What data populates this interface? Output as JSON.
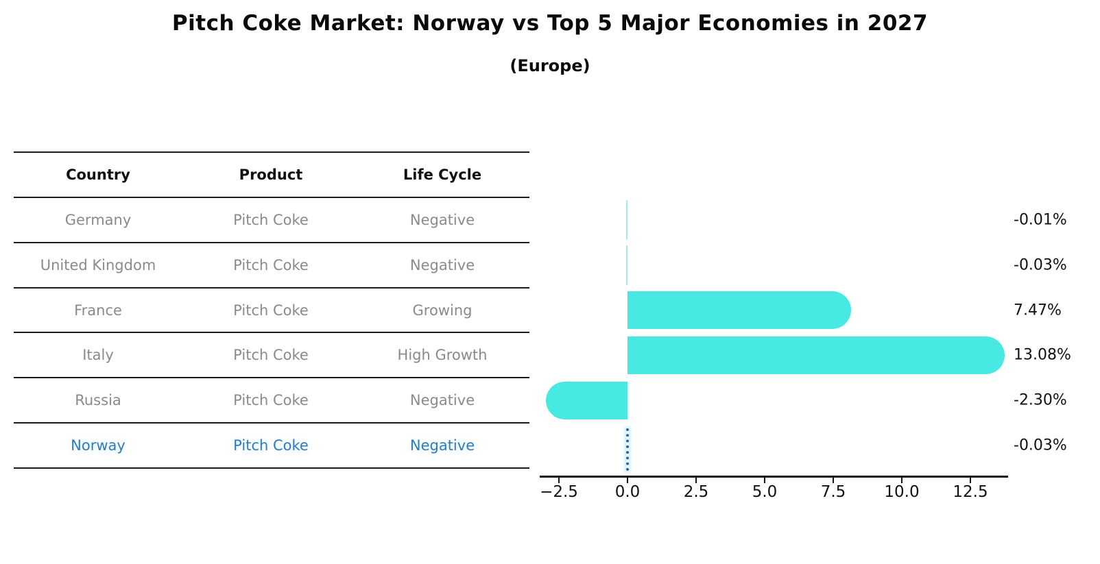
{
  "title": "Pitch Coke Market: Norway vs Top 5 Major Economies in 2027",
  "subtitle": "(Europe)",
  "table": {
    "headers": [
      "Country",
      "Product",
      "Life Cycle"
    ],
    "rows": [
      {
        "country": "Germany",
        "product": "Pitch Coke",
        "life_cycle": "Negative",
        "highlight": false
      },
      {
        "country": "United Kingdom",
        "product": "Pitch Coke",
        "life_cycle": "Negative",
        "highlight": false
      },
      {
        "country": "France",
        "product": "Pitch Coke",
        "life_cycle": "Growing",
        "highlight": false
      },
      {
        "country": "Italy",
        "product": "Pitch Coke",
        "life_cycle": "High Growth",
        "highlight": false
      },
      {
        "country": "Russia",
        "product": "Pitch Coke",
        "life_cycle": "Negative",
        "highlight": false
      },
      {
        "country": "Norway",
        "product": "Pitch Coke",
        "life_cycle": "Negative",
        "highlight": true
      }
    ]
  },
  "chart_data": {
    "type": "bar",
    "orientation": "horizontal",
    "title": "Pitch Coke Market: Norway vs Top 5 Major Economies in 2027",
    "subtitle": "(Europe)",
    "categories": [
      "Germany",
      "United Kingdom",
      "France",
      "Italy",
      "Russia",
      "Norway"
    ],
    "values": [
      -0.01,
      -0.03,
      7.47,
      13.08,
      -2.3,
      -0.03
    ],
    "value_labels": [
      "-0.01%",
      "-0.03%",
      "7.47%",
      "13.08%",
      "-2.30%",
      "-0.03%"
    ],
    "highlight_index": 5,
    "highlight_style": "blue-dotted-line",
    "x_ticks": [
      {
        "value": -2.5,
        "label": "−2.5"
      },
      {
        "value": 0.0,
        "label": "0.0"
      },
      {
        "value": 2.5,
        "label": "2.5"
      },
      {
        "value": 5.0,
        "label": "5.0"
      },
      {
        "value": 7.5,
        "label": "7.5"
      },
      {
        "value": 10.0,
        "label": "10.0"
      },
      {
        "value": 12.5,
        "label": "12.5"
      }
    ],
    "xlim": [
      -3.07,
      13.85
    ],
    "grid": false,
    "legend": "none",
    "bar_color": "#48e9e3",
    "tiny_bar_color": "#9df1ec",
    "highlight_line_color": "#2366b0",
    "highlight_text_color": "#2d7bbf",
    "axis_color": "#111111",
    "table_text_color": "#8a8a8a"
  }
}
